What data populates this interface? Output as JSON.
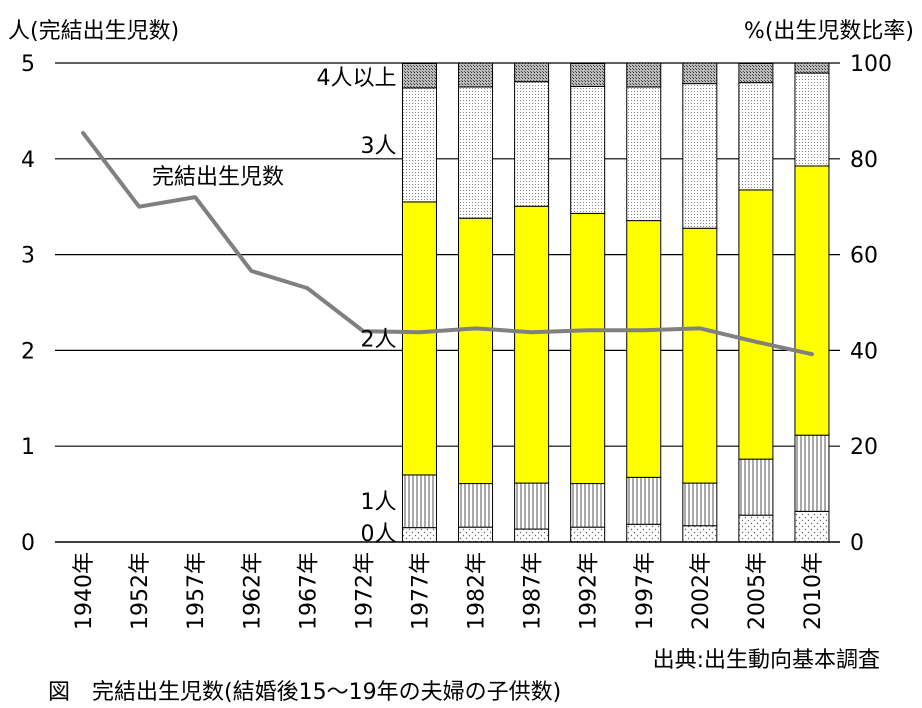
{
  "chart_data": {
    "type": "bar",
    "left_axis_title": "人(完結出生児数)",
    "right_axis_title": "%(出生児数比率)",
    "left_ylim": [
      0,
      5
    ],
    "left_ticks": [
      "0",
      "1",
      "2",
      "3",
      "4",
      "5"
    ],
    "right_ylim": [
      0,
      100
    ],
    "right_ticks": [
      "0",
      "20",
      "40",
      "60",
      "80",
      "100"
    ],
    "categories": [
      "1940年",
      "1952年",
      "1957年",
      "1962年",
      "1967年",
      "1972年",
      "1977年",
      "1982年",
      "1987年",
      "1992年",
      "1997年",
      "2002年",
      "2005年",
      "2010年"
    ],
    "line_series": {
      "name": "完結出生児数",
      "values": [
        4.27,
        3.5,
        3.6,
        2.83,
        2.65,
        2.2,
        2.19,
        2.23,
        2.19,
        2.21,
        2.21,
        2.23,
        2.09,
        1.96
      ]
    },
    "stacked_series": [
      {
        "name": "0人",
        "pattern": "dots-sparse",
        "values": [
          null,
          null,
          null,
          null,
          null,
          null,
          3.0,
          3.1,
          2.7,
          3.1,
          3.7,
          3.4,
          5.6,
          6.4
        ]
      },
      {
        "name": "1人",
        "pattern": "vertical-lines",
        "values": [
          null,
          null,
          null,
          null,
          null,
          null,
          11.0,
          9.1,
          9.6,
          9.1,
          9.8,
          8.9,
          11.7,
          15.9
        ]
      },
      {
        "name": "2人",
        "color": "#ffff00",
        "values": [
          null,
          null,
          null,
          null,
          null,
          null,
          57.0,
          55.4,
          57.8,
          56.4,
          53.6,
          53.2,
          56.2,
          56.2
        ]
      },
      {
        "name": "3人",
        "pattern": "dots-dense",
        "values": [
          null,
          null,
          null,
          null,
          null,
          null,
          23.8,
          27.4,
          26.0,
          26.5,
          27.9,
          30.2,
          22.4,
          19.4
        ]
      },
      {
        "name": "4人以上",
        "pattern": "crosshatch",
        "values": [
          null,
          null,
          null,
          null,
          null,
          null,
          5.1,
          5.0,
          3.9,
          4.8,
          5.0,
          4.3,
          4.0,
          2.1
        ]
      }
    ],
    "grid": true,
    "colors": {
      "line": "#808080",
      "bar_2": "#ffff00",
      "grid": "#000000"
    },
    "source_note": "出典:出生動向基本調査",
    "caption": "図　完結出生児数(結婚後15〜19年の夫婦の子供数)"
  }
}
